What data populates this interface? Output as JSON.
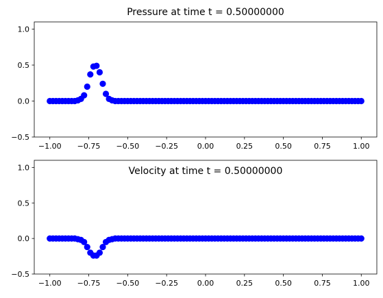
{
  "chart_data": [
    {
      "type": "scatter",
      "title": "Pressure at time t =      0.50000000",
      "xlabel": "",
      "ylabel": "",
      "xlim": [
        -1.1,
        1.1
      ],
      "ylim": [
        -0.5,
        1.1
      ],
      "xticks": [
        -1.0,
        -0.75,
        -0.5,
        -0.25,
        0.0,
        0.25,
        0.5,
        0.75,
        1.0
      ],
      "xtick_labels": [
        "−1.00",
        "−0.75",
        "−0.50",
        "−0.25",
        "0.00",
        "0.25",
        "0.50",
        "0.75",
        "1.00"
      ],
      "yticks": [
        -0.5,
        0.0,
        0.5,
        1.0
      ],
      "ytick_labels": [
        "−0.5",
        "0.0",
        "0.5",
        "1.0"
      ],
      "grid": false,
      "marker_color": "#0000ff",
      "x": [
        -1.0,
        -0.98,
        -0.96,
        -0.94,
        -0.92,
        -0.9,
        -0.88,
        -0.86,
        -0.84,
        -0.82,
        -0.8,
        -0.78,
        -0.76,
        -0.74,
        -0.72,
        -0.7,
        -0.68,
        -0.66,
        -0.64,
        -0.62,
        -0.6,
        -0.58,
        -0.56,
        -0.54,
        -0.52,
        -0.5,
        -0.48,
        -0.46,
        -0.44,
        -0.42,
        -0.4,
        -0.38,
        -0.36,
        -0.34,
        -0.32,
        -0.3,
        -0.28,
        -0.26,
        -0.24,
        -0.22,
        -0.2,
        -0.18,
        -0.16,
        -0.14,
        -0.12,
        -0.1,
        -0.08,
        -0.06,
        -0.04,
        -0.02,
        0.0,
        0.02,
        0.04,
        0.06,
        0.08,
        0.1,
        0.12,
        0.14,
        0.16,
        0.18,
        0.2,
        0.22,
        0.24,
        0.26,
        0.28,
        0.3,
        0.32,
        0.34,
        0.36,
        0.38,
        0.4,
        0.42,
        0.44,
        0.46,
        0.48,
        0.5,
        0.52,
        0.54,
        0.56,
        0.58,
        0.6,
        0.62,
        0.64,
        0.66,
        0.68,
        0.7,
        0.72,
        0.74,
        0.76,
        0.78,
        0.8,
        0.82,
        0.84,
        0.86,
        0.88,
        0.9,
        0.92,
        0.94,
        0.96,
        0.98,
        1.0
      ],
      "y": [
        0,
        0,
        0,
        0,
        0,
        0,
        0,
        0,
        0,
        0.01,
        0.03,
        0.08,
        0.2,
        0.37,
        0.48,
        0.49,
        0.4,
        0.24,
        0.1,
        0.03,
        0.01,
        0,
        0,
        0,
        0,
        0,
        0,
        0,
        0,
        0,
        0,
        0,
        0,
        0,
        0,
        0,
        0,
        0,
        0,
        0,
        0,
        0,
        0,
        0,
        0,
        0,
        0,
        0,
        0,
        0,
        0,
        0,
        0,
        0,
        0,
        0,
        0,
        0,
        0,
        0,
        0,
        0,
        0,
        0,
        0,
        0,
        0,
        0,
        0,
        0,
        0,
        0,
        0,
        0,
        0,
        0,
        0,
        0,
        0,
        0,
        0,
        0,
        0,
        0,
        0,
        0,
        0,
        0,
        0,
        0,
        0,
        0,
        0,
        0,
        0,
        0,
        0,
        0,
        0,
        0,
        0
      ]
    },
    {
      "type": "scatter",
      "title": "Velocity at time t =      0.50000000",
      "xlabel": "",
      "ylabel": "",
      "xlim": [
        -1.1,
        1.1
      ],
      "ylim": [
        -0.5,
        1.1
      ],
      "xticks": [
        -1.0,
        -0.75,
        -0.5,
        -0.25,
        0.0,
        0.25,
        0.5,
        0.75,
        1.0
      ],
      "xtick_labels": [
        "−1.00",
        "−0.75",
        "−0.50",
        "−0.25",
        "0.00",
        "0.25",
        "0.50",
        "0.75",
        "1.00"
      ],
      "yticks": [
        -0.5,
        0.0,
        0.5,
        1.0
      ],
      "ytick_labels": [
        "−0.5",
        "0.0",
        "0.5",
        "1.0"
      ],
      "grid": false,
      "marker_color": "#0000ff",
      "x": [
        -1.0,
        -0.98,
        -0.96,
        -0.94,
        -0.92,
        -0.9,
        -0.88,
        -0.86,
        -0.84,
        -0.82,
        -0.8,
        -0.78,
        -0.76,
        -0.74,
        -0.72,
        -0.7,
        -0.68,
        -0.66,
        -0.64,
        -0.62,
        -0.6,
        -0.58,
        -0.56,
        -0.54,
        -0.52,
        -0.5,
        -0.48,
        -0.46,
        -0.44,
        -0.42,
        -0.4,
        -0.38,
        -0.36,
        -0.34,
        -0.32,
        -0.3,
        -0.28,
        -0.26,
        -0.24,
        -0.22,
        -0.2,
        -0.18,
        -0.16,
        -0.14,
        -0.12,
        -0.1,
        -0.08,
        -0.06,
        -0.04,
        -0.02,
        0.0,
        0.02,
        0.04,
        0.06,
        0.08,
        0.1,
        0.12,
        0.14,
        0.16,
        0.18,
        0.2,
        0.22,
        0.24,
        0.26,
        0.28,
        0.3,
        0.32,
        0.34,
        0.36,
        0.38,
        0.4,
        0.42,
        0.44,
        0.46,
        0.48,
        0.5,
        0.52,
        0.54,
        0.56,
        0.58,
        0.6,
        0.62,
        0.64,
        0.66,
        0.68,
        0.7,
        0.72,
        0.74,
        0.76,
        0.78,
        0.8,
        0.82,
        0.84,
        0.86,
        0.88,
        0.9,
        0.92,
        0.94,
        0.96,
        0.98,
        1.0
      ],
      "y": [
        0,
        0,
        0,
        0,
        0,
        0,
        0,
        0,
        0,
        -0.01,
        -0.02,
        -0.05,
        -0.12,
        -0.2,
        -0.24,
        -0.24,
        -0.2,
        -0.12,
        -0.05,
        -0.02,
        -0.01,
        0,
        0,
        0,
        0,
        0,
        0,
        0,
        0,
        0,
        0,
        0,
        0,
        0,
        0,
        0,
        0,
        0,
        0,
        0,
        0,
        0,
        0,
        0,
        0,
        0,
        0,
        0,
        0,
        0,
        0,
        0,
        0,
        0,
        0,
        0,
        0,
        0,
        0,
        0,
        0,
        0,
        0,
        0,
        0,
        0,
        0,
        0,
        0,
        0,
        0,
        0,
        0,
        0,
        0,
        0,
        0,
        0,
        0,
        0,
        0,
        0,
        0,
        0,
        0,
        0,
        0,
        0,
        0,
        0,
        0,
        0,
        0,
        0,
        0,
        0,
        0,
        0,
        0,
        0,
        0
      ]
    }
  ]
}
